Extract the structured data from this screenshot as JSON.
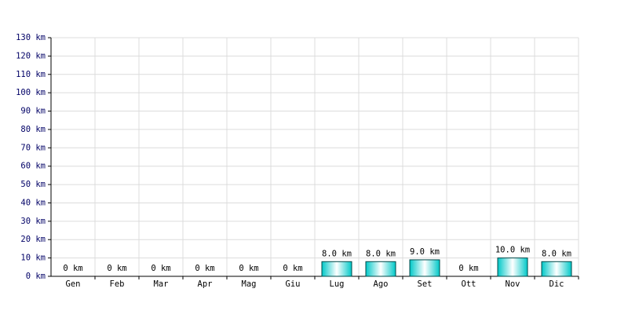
{
  "chart_data": {
    "type": "bar",
    "categories": [
      "Gen",
      "Feb",
      "Mar",
      "Apr",
      "Mag",
      "Giu",
      "Lug",
      "Ago",
      "Set",
      "Ott",
      "Nov",
      "Dic"
    ],
    "values": [
      0,
      0,
      0,
      0,
      0,
      0,
      8,
      8,
      9,
      0,
      10,
      8
    ],
    "value_labels": [
      "0 km",
      "0 km",
      "0 km",
      "0 km",
      "0 km",
      "0 km",
      "8.0 km",
      "8.0 km",
      "9.0 km",
      "0 km",
      "10.0 km",
      "8.0 km"
    ],
    "color": "#00c8c8",
    "ylim": [
      0,
      130
    ],
    "yticks": [
      {
        "value": 0,
        "label": "0 km"
      },
      {
        "value": 10,
        "label": "10 km"
      },
      {
        "value": 20,
        "label": "20 km"
      },
      {
        "value": 30,
        "label": "30 km"
      },
      {
        "value": 40,
        "label": "40 km"
      },
      {
        "value": 50,
        "label": "50 km"
      },
      {
        "value": 60,
        "label": "60 km"
      },
      {
        "value": 70,
        "label": "70 km"
      },
      {
        "value": 80,
        "label": "80 km"
      },
      {
        "value": 90,
        "label": "90 km"
      },
      {
        "value": 100,
        "label": "100 km"
      },
      {
        "value": 110,
        "label": "110 km"
      },
      {
        "value": 120,
        "label": "120 km"
      },
      {
        "value": 130,
        "label": "130 km"
      }
    ],
    "grid": true
  }
}
